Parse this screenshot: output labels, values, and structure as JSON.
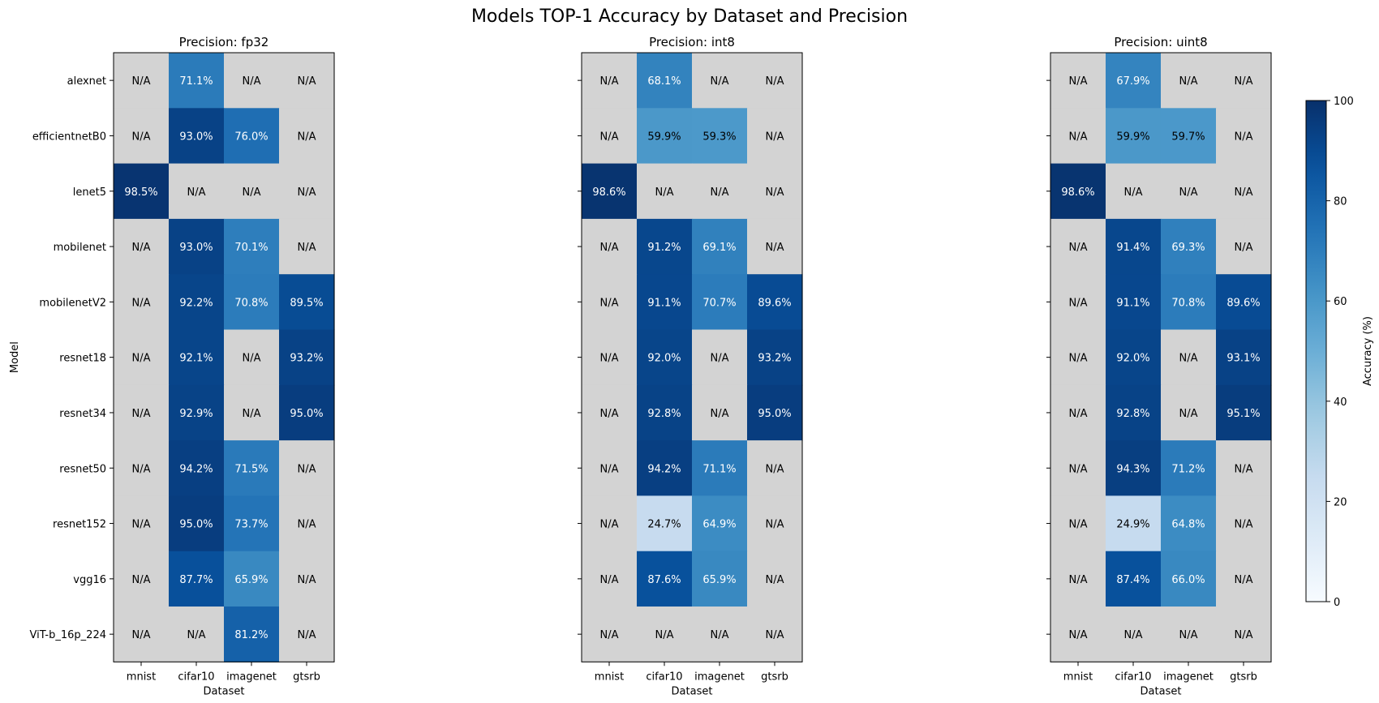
{
  "figure": {
    "title": "Models TOP-1 Accuracy by Dataset and Precision"
  },
  "chart_data": [
    {
      "type": "heatmap",
      "title": "Precision: fp32",
      "xlabel": "Dataset",
      "ylabel": "Model",
      "x_categories": [
        "mnist",
        "cifar10",
        "imagenet",
        "gtsrb"
      ],
      "y_categories": [
        "alexnet",
        "efficientnetB0",
        "lenet5",
        "mobilenet",
        "mobilenetV2",
        "resnet18",
        "resnet34",
        "resnet50",
        "resnet152",
        "vgg16",
        "ViT-b_16p_224"
      ],
      "missing_label": "N/A",
      "values": [
        [
          null,
          71.1,
          null,
          null
        ],
        [
          null,
          93.0,
          76.0,
          null
        ],
        [
          98.5,
          null,
          null,
          null
        ],
        [
          null,
          93.0,
          70.1,
          null
        ],
        [
          null,
          92.2,
          70.8,
          89.5
        ],
        [
          null,
          92.1,
          null,
          93.2
        ],
        [
          null,
          92.9,
          null,
          95.0
        ],
        [
          null,
          94.2,
          71.5,
          null
        ],
        [
          null,
          95.0,
          73.7,
          null
        ],
        [
          null,
          87.7,
          65.9,
          null
        ],
        [
          null,
          null,
          81.2,
          null
        ]
      ]
    },
    {
      "type": "heatmap",
      "title": "Precision: int8",
      "xlabel": "Dataset",
      "ylabel": "",
      "x_categories": [
        "mnist",
        "cifar10",
        "imagenet",
        "gtsrb"
      ],
      "y_categories": [
        "alexnet",
        "efficientnetB0",
        "lenet5",
        "mobilenet",
        "mobilenetV2",
        "resnet18",
        "resnet34",
        "resnet50",
        "resnet152",
        "vgg16",
        "ViT-b_16p_224"
      ],
      "missing_label": "N/A",
      "values": [
        [
          null,
          68.1,
          null,
          null
        ],
        [
          null,
          59.9,
          59.3,
          null
        ],
        [
          98.6,
          null,
          null,
          null
        ],
        [
          null,
          91.2,
          69.1,
          null
        ],
        [
          null,
          91.1,
          70.7,
          89.6
        ],
        [
          null,
          92.0,
          null,
          93.2
        ],
        [
          null,
          92.8,
          null,
          95.0
        ],
        [
          null,
          94.2,
          71.1,
          null
        ],
        [
          null,
          24.7,
          64.9,
          null
        ],
        [
          null,
          87.6,
          65.9,
          null
        ],
        [
          null,
          null,
          null,
          null
        ]
      ]
    },
    {
      "type": "heatmap",
      "title": "Precision: uint8",
      "xlabel": "Dataset",
      "ylabel": "",
      "x_categories": [
        "mnist",
        "cifar10",
        "imagenet",
        "gtsrb"
      ],
      "y_categories": [
        "alexnet",
        "efficientnetB0",
        "lenet5",
        "mobilenet",
        "mobilenetV2",
        "resnet18",
        "resnet34",
        "resnet50",
        "resnet152",
        "vgg16",
        "ViT-b_16p_224"
      ],
      "missing_label": "N/A",
      "values": [
        [
          null,
          67.9,
          null,
          null
        ],
        [
          null,
          59.9,
          59.7,
          null
        ],
        [
          98.6,
          null,
          null,
          null
        ],
        [
          null,
          91.4,
          69.3,
          null
        ],
        [
          null,
          91.1,
          70.8,
          89.6
        ],
        [
          null,
          92.0,
          null,
          93.1
        ],
        [
          null,
          92.8,
          null,
          95.1
        ],
        [
          null,
          94.3,
          71.2,
          null
        ],
        [
          null,
          24.9,
          64.8,
          null
        ],
        [
          null,
          87.4,
          66.0,
          null
        ],
        [
          null,
          null,
          null,
          null
        ]
      ]
    }
  ],
  "colorbar": {
    "label": "Accuracy (%)",
    "range": [
      0,
      100
    ],
    "ticks": [
      0,
      20,
      40,
      60,
      80,
      100
    ],
    "colormap": "Blues"
  },
  "colors": {
    "missing_cell": "#d3d3d3",
    "text_light": "#ffffff",
    "text_dark": "#000000",
    "frame": "#000000"
  }
}
